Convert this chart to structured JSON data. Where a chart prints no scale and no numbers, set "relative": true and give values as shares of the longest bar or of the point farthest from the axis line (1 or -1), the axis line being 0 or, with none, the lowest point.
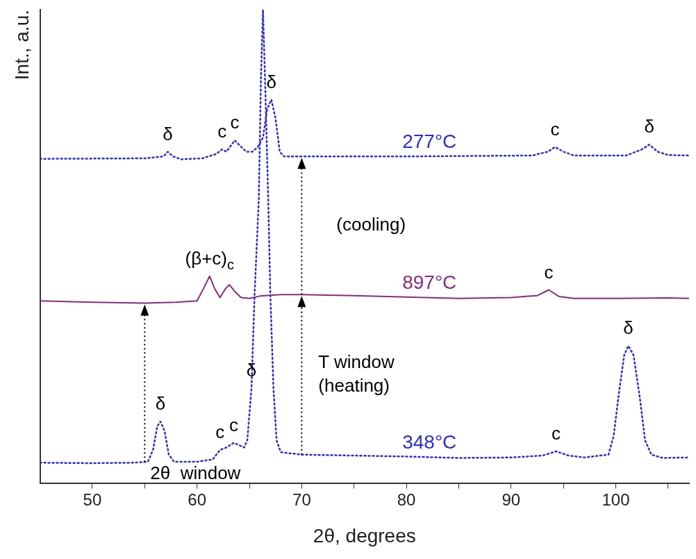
{
  "chart_data": {
    "type": "line",
    "relative": true,
    "xlabel": "2θ, degrees",
    "ylabel": "Int., a.u.",
    "xlim": [
      45,
      107
    ],
    "xticks": [
      50,
      {
        "value": 55,
        "label": null
      },
      60,
      {
        "value": 65,
        "label": null
      },
      70,
      {
        "value": 75,
        "label": null
      },
      80,
      {
        "value": 85,
        "label": null
      },
      90,
      {
        "value": 95,
        "label": null
      },
      100,
      {
        "value": 105,
        "label": null
      }
    ],
    "legend": false,
    "grid": false,
    "marker": "none",
    "series": [
      {
        "name": "348°C",
        "color": "#2b2bd6",
        "line_style": "dotted",
        "x": [
          45,
          50,
          54,
          55.3,
          55.8,
          56.2,
          56.5,
          56.9,
          57.3,
          57.8,
          60,
          61.5,
          62.2,
          62.8,
          63.5,
          64,
          64.5,
          64.8,
          65.2,
          65.5,
          65.9,
          66.1,
          66.3,
          66.5,
          66.8,
          67,
          67.3,
          67.6,
          68,
          70,
          75,
          80,
          85,
          90,
          93,
          94.3,
          95.5,
          97,
          99.3,
          99.8,
          100.3,
          100.8,
          101.2,
          101.7,
          102.3,
          102.8,
          103.4,
          104.5,
          107
        ],
        "values": [
          0.043,
          0.042,
          0.043,
          0.045,
          0.07,
          0.12,
          0.13,
          0.11,
          0.06,
          0.045,
          0.045,
          0.05,
          0.07,
          0.075,
          0.085,
          0.08,
          0.075,
          0.09,
          0.2,
          0.4,
          0.6,
          0.85,
          1.0,
          0.85,
          0.6,
          0.4,
          0.2,
          0.09,
          0.065,
          0.06,
          0.058,
          0.056,
          0.053,
          0.054,
          0.058,
          0.067,
          0.058,
          0.054,
          0.06,
          0.1,
          0.19,
          0.27,
          0.29,
          0.27,
          0.18,
          0.09,
          0.06,
          0.053,
          0.054
        ]
      },
      {
        "name": "897°C",
        "color": "#8b2a7f",
        "line_style": "solid",
        "x": [
          45,
          50,
          55,
          58,
          60,
          60.6,
          61.2,
          61.7,
          62.2,
          62.7,
          63.1,
          63.6,
          64.2,
          65,
          66,
          68,
          70,
          75,
          80,
          85,
          90,
          92.5,
          93.6,
          94.6,
          96,
          100,
          105,
          107
        ],
        "values": [
          0.385,
          0.382,
          0.38,
          0.382,
          0.385,
          0.41,
          0.437,
          0.41,
          0.392,
          0.41,
          0.419,
          0.405,
          0.392,
          0.39,
          0.395,
          0.398,
          0.398,
          0.396,
          0.393,
          0.39,
          0.392,
          0.396,
          0.408,
          0.394,
          0.39,
          0.39,
          0.391,
          0.39
        ]
      },
      {
        "name": "277°C",
        "color": "#2b2bd6",
        "line_style": "dotted",
        "x": [
          45,
          55,
          56.8,
          57.2,
          57.7,
          58.5,
          60.5,
          61.8,
          62.4,
          62.8,
          63.3,
          63.6,
          64,
          64.7,
          65.3,
          65.8,
          66.3,
          66.7,
          67.1,
          67.5,
          67.9,
          68.3,
          70,
          80,
          92,
          93.5,
          94.2,
          95,
          96,
          101,
          102.5,
          103.2,
          104,
          105,
          107
        ],
        "values": [
          0.685,
          0.686,
          0.69,
          0.7,
          0.69,
          0.684,
          0.686,
          0.695,
          0.705,
          0.7,
          0.715,
          0.724,
          0.715,
          0.7,
          0.7,
          0.71,
          0.73,
          0.79,
          0.81,
          0.77,
          0.7,
          0.69,
          0.69,
          0.69,
          0.692,
          0.7,
          0.71,
          0.7,
          0.692,
          0.692,
          0.705,
          0.715,
          0.7,
          0.693,
          0.692
        ]
      }
    ],
    "ref_lines": [
      {
        "axis": "x",
        "value": 55,
        "color": "#000000",
        "line_style": "dotted",
        "label": "2θ  window"
      },
      {
        "axis": "x",
        "value": 70,
        "color": "#000000",
        "line_style": "dotted",
        "label": "T window\n(heating)"
      }
    ],
    "annotations": [
      {
        "text": "δ",
        "x": 57.2,
        "y": 0.7
      },
      {
        "text": "c",
        "x": 62.4,
        "y": 0.705
      },
      {
        "text": "c",
        "x": 63.6,
        "y": 0.724
      },
      {
        "text": "δ",
        "x": 67.1,
        "y": 0.81
      },
      {
        "text": "c",
        "x": 94.2,
        "y": 0.71
      },
      {
        "text": "δ",
        "x": 103.2,
        "y": 0.715
      },
      {
        "text": "(β+c)$_{c}$",
        "x": 61.2,
        "y": 0.437
      },
      {
        "text": "c",
        "x": 93.6,
        "y": 0.408
      },
      {
        "text": "δ",
        "x": 56.5,
        "y": 0.13
      },
      {
        "text": "c",
        "x": 62.2,
        "y": 0.07
      },
      {
        "text": "c",
        "x": 63.5,
        "y": 0.085
      },
      {
        "text": "δ",
        "x": 65.2,
        "y": 0.2
      },
      {
        "text": "c",
        "x": 94.3,
        "y": 0.067
      },
      {
        "text": "δ",
        "x": 101.2,
        "y": 0.29
      },
      "(cooling)"
    ]
  }
}
